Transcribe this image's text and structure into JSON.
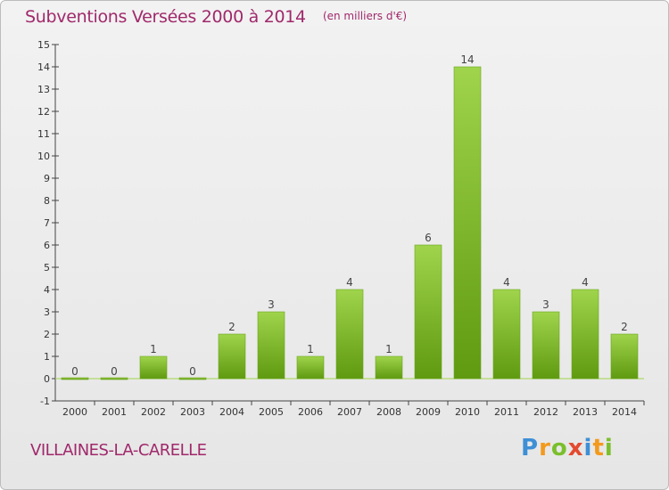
{
  "header": {
    "title": "Subventions Versées 2000 à 2014",
    "subtitle": "(en milliers d'€)"
  },
  "footer": {
    "commune": "VILLAINES-LA-CARELLE",
    "logo": [
      "P",
      "r",
      "o",
      "x",
      "i",
      "t",
      "i"
    ]
  },
  "chart_data": {
    "type": "bar",
    "title": "Subventions Versées 2000 à 2014",
    "subtitle": "(en milliers d'€)",
    "xlabel": "",
    "ylabel": "",
    "categories": [
      "2000",
      "2001",
      "2002",
      "2003",
      "2004",
      "2005",
      "2006",
      "2007",
      "2008",
      "2009",
      "2010",
      "2011",
      "2012",
      "2013",
      "2014"
    ],
    "values": [
      0,
      0,
      1,
      0,
      2,
      3,
      1,
      4,
      1,
      6,
      14,
      4,
      3,
      4,
      2
    ],
    "ylim": [
      -1,
      15
    ],
    "yticks": [
      -1,
      0,
      1,
      2,
      3,
      4,
      5,
      6,
      7,
      8,
      9,
      10,
      11,
      12,
      13,
      14,
      15
    ],
    "grid": false,
    "colors": {
      "bar_light": "#9fd44c",
      "bar_dark": "#5f9a10",
      "title": "#a0296b"
    }
  }
}
